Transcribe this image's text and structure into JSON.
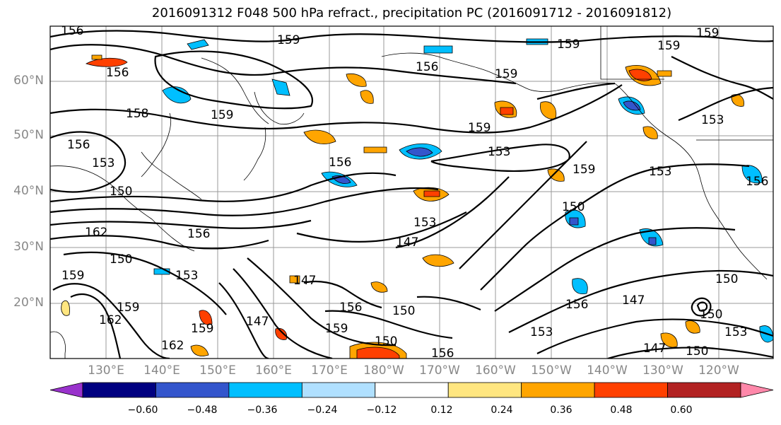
{
  "title": "2016091312 F048 500 hPa refract., precipitation PC (2016091712 - 2016091812)",
  "lat_labels": [
    "60°N",
    "50°N",
    "40°N",
    "30°N",
    "20°N"
  ],
  "lon_labels": [
    "130°E",
    "140°E",
    "150°E",
    "160°E",
    "170°E",
    "180°W",
    "170°W",
    "160°W",
    "150°W",
    "140°W",
    "130°W",
    "120°W"
  ],
  "contour_labels": [
    "156",
    "159",
    "156",
    "159",
    "158",
    "159",
    "156",
    "156",
    "153",
    "153",
    "150",
    "153",
    "159",
    "159",
    "159",
    "156",
    "159",
    "153",
    "162",
    "156",
    "150",
    "153",
    "147",
    "147",
    "156",
    "150",
    "159",
    "162",
    "159",
    "147",
    "150",
    "159",
    "153",
    "156",
    "156",
    "153",
    "150",
    "159",
    "150",
    "147",
    "150",
    "153",
    "147",
    "156",
    "150",
    "162",
    "159"
  ],
  "colorbar": {
    "colors": [
      "#9932cc",
      "#000080",
      "#3355cc",
      "#00bfff",
      "#b0e0ff",
      "#ffffff",
      "#ffe680",
      "#ffa500",
      "#ff4000",
      "#b22222",
      "#ff88aa"
    ],
    "ticks": [
      "−0.60",
      "−0.48",
      "−0.36",
      "−0.24",
      "−0.12",
      "0.12",
      "0.24",
      "0.36",
      "0.48",
      "0.60"
    ]
  }
}
